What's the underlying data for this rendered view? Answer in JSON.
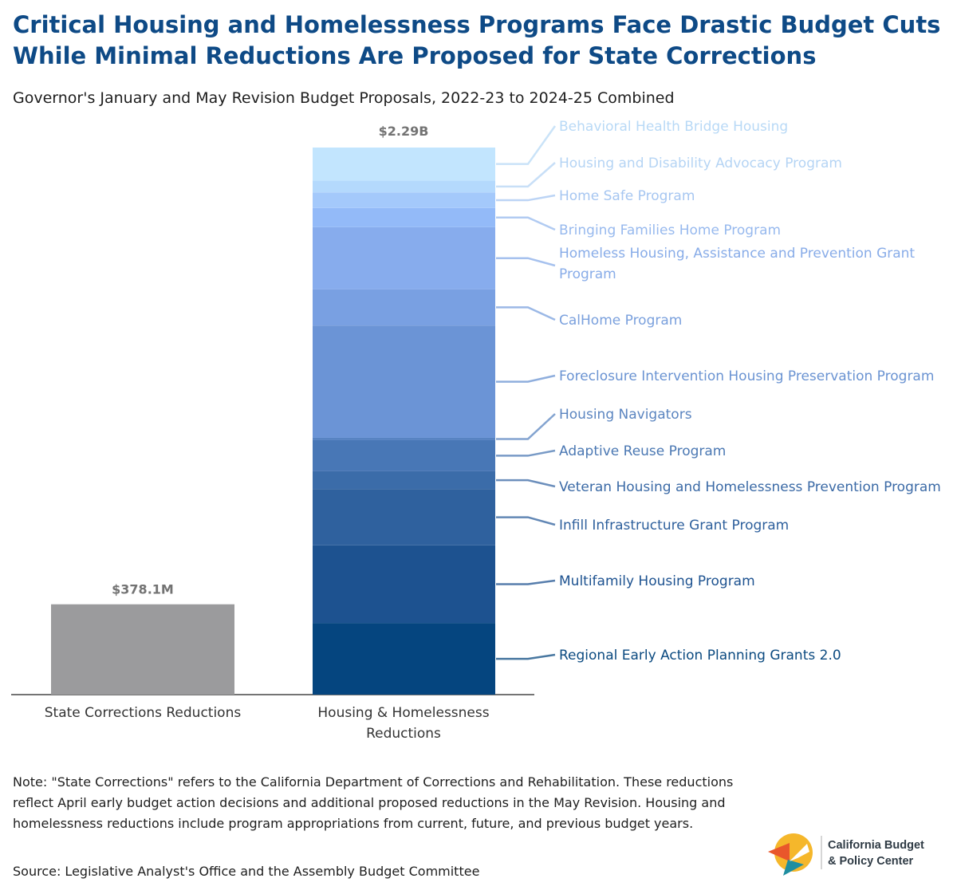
{
  "title": "Critical Housing and Homelessness Programs Face Drastic Budget Cuts While Minimal Reductions Are Proposed for State Corrections",
  "subtitle": "Governor's January and May Revision Budget Proposals, 2022-23 to 2024-25 Combined",
  "note": "Note: \"State Corrections\" refers to the California Department of Corrections and Rehabilitation. These reductions reflect April early budget action decisions and additional proposed reductions in the May Revision. Housing and homelessness reductions include program appropriations from current, future, and previous budget years.",
  "source": "Source: Legislative Analyst's Office and the Assembly Budget Committee",
  "logo": {
    "line1": "California Budget",
    "line2": "& Policy Center"
  },
  "chart_data": {
    "type": "bar",
    "stacked": true,
    "unit": "millions of dollars",
    "categories": [
      "State Corrections Reductions",
      "Housing & Homelessness Reductions"
    ],
    "totals": [
      {
        "category": "State Corrections Reductions",
        "value": 378.1,
        "label": "$378.1M"
      },
      {
        "category": "Housing & Homelessness Reductions",
        "value": 2290,
        "label": "$2.29B"
      }
    ],
    "corrections": {
      "value": 378.1,
      "color": "#9b9b9d"
    },
    "housing_segments": [
      {
        "name": "Regional Early Action Planning Grants 2.0",
        "value": 300,
        "color": "#05457f",
        "label_color": "#0b4a80"
      },
      {
        "name": "Multifamily Housing Program",
        "value": 325,
        "color": "#1d5290",
        "label_color": "#1d5290"
      },
      {
        "name": "Infill Infrastructure Grant Program",
        "value": 235,
        "color": "#2f619e",
        "label_color": "#2d5f9c"
      },
      {
        "name": "Veteran Housing and Homelessness Prevention Program",
        "value": 75,
        "color": "#3b6ca9",
        "label_color": "#3b6aa6"
      },
      {
        "name": "Adaptive Reuse Program",
        "value": 130,
        "color": "#4877b6",
        "label_color": "#4b78b3"
      },
      {
        "name": "Housing Navigators",
        "value": 10,
        "color": "#5783c2",
        "label_color": "#5b85c0"
      },
      {
        "name": "Foreclosure Intervention Housing Preservation Program",
        "value": 470,
        "color": "#6b94d6",
        "label_color": "#6a93d2"
      },
      {
        "name": "CalHome Program",
        "value": 152,
        "color": "#79a0e2",
        "label_color": "#7aa0dd"
      },
      {
        "name": "Homeless Housing, Assistance and Prevention Grant Program",
        "value": 260,
        "color": "#87aced",
        "label_color": "#88ace8"
      },
      {
        "name": "Bringing Families Home Program",
        "value": 80,
        "color": "#93baf8",
        "label_color": "#97b9ee"
      },
      {
        "name": "Home Safe Program",
        "value": 65,
        "color": "#a4c9fb",
        "label_color": "#a6c6f1"
      },
      {
        "name": "Housing and Disability Advocacy Program",
        "value": 50,
        "color": "#b4d9fd",
        "label_color": "#b5d4f4"
      },
      {
        "name": "Behavioral Health Bridge Housing",
        "value": 138,
        "color": "#c2e5fe",
        "label_color": "#b8d9f6"
      }
    ],
    "ylim": [
      0,
      2290
    ],
    "gridlines": false,
    "legend": "right-side labels"
  }
}
